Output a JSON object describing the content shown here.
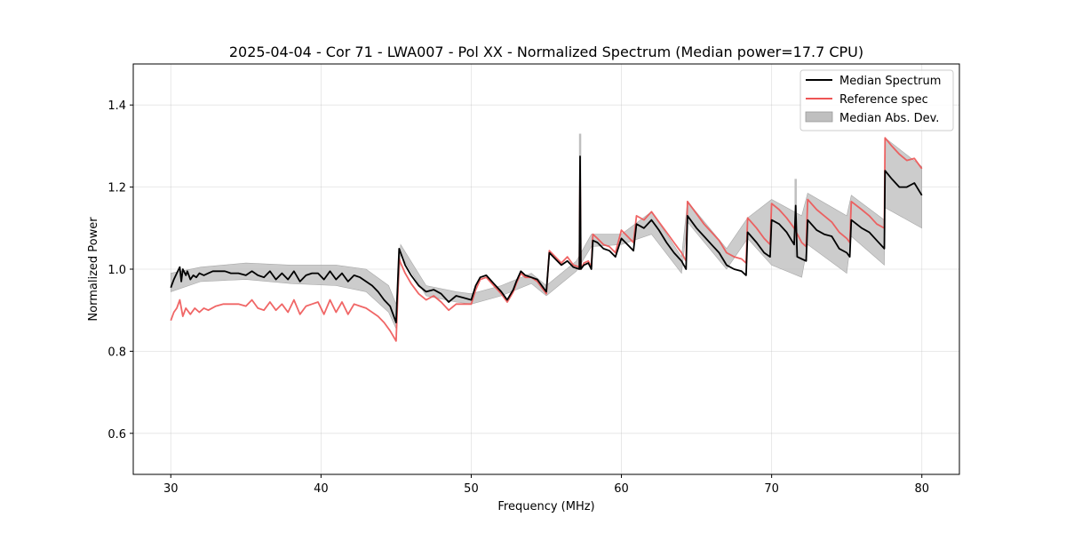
{
  "chart_data": {
    "type": "line",
    "title": "2025-04-04 - Cor 71 - LWA007 - Pol XX - Normalized Spectrum (Median power=17.7 CPU)",
    "xlabel": "Frequency (MHz)",
    "ylabel": "Normalized Power",
    "xlim": [
      27.5,
      82.5
    ],
    "ylim": [
      0.5,
      1.5
    ],
    "xticks": [
      30,
      40,
      50,
      60,
      70,
      80
    ],
    "yticks": [
      0.6,
      0.8,
      1.0,
      1.2,
      1.4
    ],
    "xtick_labels": [
      "30",
      "40",
      "50",
      "60",
      "70",
      "80"
    ],
    "ytick_labels": [
      "0.6",
      "0.8",
      "1.0",
      "1.2",
      "1.4"
    ],
    "grid": true,
    "legend": {
      "placement": "top-right",
      "entries": [
        {
          "label": "Median Spectrum",
          "type": "line",
          "color": "#000000"
        },
        {
          "label": "Reference spec",
          "type": "line",
          "color": "#ee5555"
        },
        {
          "label": "Median Abs. Dev.",
          "type": "band",
          "color": "#bfbfbf"
        }
      ]
    },
    "series": [
      {
        "name": "Median Spectrum",
        "color": "#000000",
        "x": [
          30.0,
          30.2,
          30.4,
          30.6,
          30.7,
          30.8,
          31.0,
          31.1,
          31.3,
          31.5,
          31.7,
          31.9,
          32.2,
          32.5,
          32.8,
          33.2,
          33.6,
          34.0,
          34.5,
          35.0,
          35.4,
          35.8,
          36.2,
          36.6,
          37.0,
          37.4,
          37.8,
          38.2,
          38.6,
          39.0,
          39.4,
          39.8,
          40.2,
          40.6,
          41.0,
          41.4,
          41.8,
          42.2,
          42.6,
          43.0,
          43.4,
          43.8,
          44.2,
          44.6,
          45.0,
          45.2,
          45.3,
          45.6,
          46.0,
          46.5,
          47.0,
          47.5,
          48.0,
          48.5,
          49.0,
          49.5,
          50.0,
          50.3,
          50.6,
          51.0,
          51.5,
          52.0,
          52.4,
          52.8,
          53.0,
          53.3,
          53.6,
          54.0,
          54.4,
          54.8,
          55.0,
          55.2,
          55.6,
          56.0,
          56.4,
          56.8,
          57.2,
          57.25,
          57.3,
          57.5,
          57.8,
          58.0,
          58.1,
          58.4,
          58.8,
          59.2,
          59.6,
          60.0,
          60.4,
          60.8,
          61.0,
          61.5,
          62.0,
          62.5,
          63.0,
          63.5,
          64.0,
          64.3,
          64.4,
          65.0,
          65.5,
          66.0,
          66.5,
          67.0,
          67.5,
          68.0,
          68.3,
          68.4,
          69.0,
          69.5,
          69.9,
          70.0,
          70.5,
          71.0,
          71.5,
          71.6,
          71.7,
          72.0,
          72.3,
          72.4,
          73.0,
          73.5,
          74.0,
          74.5,
          75.0,
          75.2,
          75.3,
          76.0,
          76.5,
          77.0,
          77.5,
          77.55,
          78.0,
          78.5,
          79.0,
          79.5,
          80.0
        ],
        "y": [
          0.955,
          0.975,
          0.99,
          1.005,
          0.97,
          1.0,
          0.985,
          0.995,
          0.975,
          0.985,
          0.98,
          0.99,
          0.985,
          0.99,
          0.995,
          0.995,
          0.995,
          0.99,
          0.99,
          0.985,
          0.995,
          0.985,
          0.98,
          0.995,
          0.975,
          0.99,
          0.975,
          0.995,
          0.97,
          0.985,
          0.99,
          0.99,
          0.975,
          0.995,
          0.975,
          0.99,
          0.97,
          0.985,
          0.98,
          0.97,
          0.96,
          0.945,
          0.925,
          0.91,
          0.87,
          1.05,
          1.04,
          1.01,
          0.985,
          0.96,
          0.945,
          0.95,
          0.94,
          0.92,
          0.935,
          0.93,
          0.925,
          0.96,
          0.98,
          0.985,
          0.965,
          0.945,
          0.925,
          0.95,
          0.97,
          0.995,
          0.985,
          0.98,
          0.975,
          0.955,
          0.945,
          1.04,
          1.025,
          1.01,
          1.02,
          1.005,
          1.0,
          1.275,
          1.0,
          1.01,
          1.015,
          1.0,
          1.07,
          1.065,
          1.05,
          1.045,
          1.03,
          1.075,
          1.06,
          1.045,
          1.11,
          1.1,
          1.12,
          1.095,
          1.065,
          1.04,
          1.02,
          1.0,
          1.13,
          1.1,
          1.08,
          1.06,
          1.04,
          1.01,
          1.0,
          0.995,
          0.985,
          1.09,
          1.065,
          1.04,
          1.03,
          1.12,
          1.11,
          1.09,
          1.06,
          1.155,
          1.03,
          1.025,
          1.02,
          1.12,
          1.095,
          1.085,
          1.08,
          1.05,
          1.04,
          1.03,
          1.12,
          1.1,
          1.09,
          1.07,
          1.05,
          1.24,
          1.22,
          1.2,
          1.2,
          1.21,
          1.18
        ]
      },
      {
        "name": "Reference spec",
        "color": "#ee5555",
        "x": [
          30.0,
          30.2,
          30.4,
          30.6,
          30.8,
          31.0,
          31.3,
          31.6,
          31.9,
          32.2,
          32.5,
          33.0,
          33.5,
          34.0,
          34.5,
          35.0,
          35.4,
          35.8,
          36.2,
          36.6,
          37.0,
          37.4,
          37.8,
          38.2,
          38.6,
          39.0,
          39.4,
          39.8,
          40.2,
          40.6,
          41.0,
          41.4,
          41.8,
          42.2,
          42.6,
          43.0,
          43.4,
          43.8,
          44.2,
          44.6,
          45.0,
          45.2,
          45.3,
          45.6,
          46.0,
          46.5,
          47.0,
          47.5,
          48.0,
          48.5,
          49.0,
          49.5,
          50.0,
          50.3,
          50.6,
          51.0,
          51.5,
          52.0,
          52.4,
          52.8,
          53.0,
          53.3,
          53.6,
          54.0,
          54.4,
          54.8,
          55.0,
          55.2,
          55.6,
          56.0,
          56.4,
          56.8,
          57.2,
          57.25,
          57.3,
          57.5,
          57.8,
          58.0,
          58.1,
          58.4,
          58.8,
          59.2,
          59.6,
          60.0,
          60.4,
          60.8,
          61.0,
          61.5,
          62.0,
          62.5,
          63.0,
          63.5,
          64.0,
          64.3,
          64.4,
          65.0,
          65.5,
          66.0,
          66.5,
          67.0,
          67.5,
          68.0,
          68.3,
          68.4,
          69.0,
          69.5,
          69.9,
          70.0,
          70.5,
          71.0,
          71.5,
          72.0,
          72.3,
          72.4,
          73.0,
          73.5,
          74.0,
          74.5,
          75.0,
          75.2,
          75.3,
          76.0,
          76.5,
          77.0,
          77.5,
          77.55,
          78.0,
          78.5,
          79.0,
          79.5,
          80.0
        ],
        "y": [
          0.875,
          0.895,
          0.905,
          0.925,
          0.885,
          0.905,
          0.89,
          0.905,
          0.895,
          0.905,
          0.9,
          0.91,
          0.915,
          0.915,
          0.915,
          0.91,
          0.925,
          0.905,
          0.9,
          0.92,
          0.9,
          0.915,
          0.895,
          0.925,
          0.89,
          0.91,
          0.915,
          0.92,
          0.89,
          0.925,
          0.895,
          0.92,
          0.89,
          0.915,
          0.91,
          0.905,
          0.895,
          0.885,
          0.87,
          0.85,
          0.825,
          1.025,
          1.015,
          0.99,
          0.965,
          0.94,
          0.925,
          0.935,
          0.92,
          0.9,
          0.915,
          0.915,
          0.915,
          0.95,
          0.975,
          0.98,
          0.96,
          0.94,
          0.92,
          0.945,
          0.965,
          0.99,
          0.98,
          0.98,
          0.97,
          0.95,
          0.94,
          1.045,
          1.03,
          1.015,
          1.03,
          1.01,
          1.005,
          1.25,
          1.0,
          1.015,
          1.02,
          1.005,
          1.085,
          1.075,
          1.06,
          1.055,
          1.04,
          1.095,
          1.08,
          1.065,
          1.13,
          1.12,
          1.14,
          1.115,
          1.09,
          1.065,
          1.04,
          1.02,
          1.165,
          1.135,
          1.11,
          1.09,
          1.07,
          1.04,
          1.03,
          1.025,
          1.015,
          1.125,
          1.1,
          1.075,
          1.06,
          1.16,
          1.145,
          1.125,
          1.1,
          1.065,
          1.055,
          1.17,
          1.145,
          1.13,
          1.115,
          1.09,
          1.075,
          1.065,
          1.165,
          1.145,
          1.13,
          1.11,
          1.1,
          1.32,
          1.3,
          1.28,
          1.265,
          1.27,
          1.245
        ]
      }
    ],
    "band": {
      "name": "Median Abs. Dev.",
      "color": "#bfbfbf",
      "x": [
        30.0,
        32.0,
        35.0,
        38.0,
        41.0,
        43.0,
        44.5,
        45.0,
        45.3,
        47.0,
        49.0,
        50.0,
        52.0,
        54.0,
        55.0,
        57.0,
        58.0,
        60.0,
        62.0,
        64.0,
        64.4,
        67.0,
        68.4,
        70.0,
        72.0,
        72.4,
        75.0,
        75.3,
        77.5,
        77.55,
        80.0
      ],
      "lower": [
        0.945,
        0.97,
        0.975,
        0.965,
        0.96,
        0.945,
        0.895,
        0.855,
        1.035,
        0.935,
        0.92,
        0.915,
        0.935,
        0.965,
        0.935,
        0.995,
        1.055,
        1.06,
        1.085,
        0.99,
        1.115,
        1.0,
        1.075,
        1.01,
        0.98,
        1.06,
        0.99,
        1.08,
        1.01,
        1.15,
        1.1
      ],
      "upper": [
        0.99,
        1.005,
        1.015,
        1.01,
        1.01,
        1.0,
        0.96,
        0.915,
        1.06,
        0.96,
        0.945,
        0.94,
        0.96,
        0.99,
        0.96,
        1.02,
        1.085,
        1.085,
        1.14,
        1.03,
        1.165,
        1.05,
        1.125,
        1.17,
        1.13,
        1.185,
        1.13,
        1.18,
        1.12,
        1.32,
        1.25
      ]
    },
    "spikes": [
      {
        "x": 57.25,
        "low": 1.0,
        "high": 1.33,
        "color": "#bfbfbf"
      },
      {
        "x": 71.6,
        "low": 1.03,
        "high": 1.22,
        "color": "#bfbfbf"
      }
    ]
  }
}
